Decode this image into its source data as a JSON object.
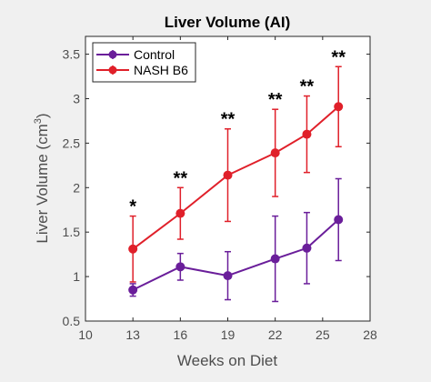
{
  "colors": {
    "figure_background": "#f0f0f0",
    "axes_background": "#ffffff",
    "axis": "#262626",
    "tick_label": "#4d4d4d",
    "control": "#6a1e9a",
    "nash": "#e0202a"
  },
  "chart_data": {
    "type": "line",
    "title": "Liver Volume (AI)",
    "xlabel": "Weeks on Diet",
    "ylabel": "Liver Volume (cm",
    "ylabel_superscript": "3",
    "ylabel_suffix": ")",
    "xlim": [
      10,
      28
    ],
    "ylim": [
      0.5,
      3.7
    ],
    "x_ticks": [
      10,
      13,
      16,
      19,
      22,
      25,
      28
    ],
    "y_ticks": [
      0.5,
      1,
      1.5,
      2,
      2.5,
      3,
      3.5
    ],
    "y_tick_labels": [
      "0.5",
      "1",
      "1.5",
      "2",
      "2.5",
      "3",
      "3.5"
    ],
    "grid": false,
    "legend_position": "top-left",
    "series": [
      {
        "name": "Control",
        "color": "#6a1e9a",
        "x": [
          13,
          16,
          19,
          22,
          24,
          26
        ],
        "y": [
          0.85,
          1.11,
          1.01,
          1.2,
          1.32,
          1.64
        ],
        "err": [
          0.07,
          0.15,
          0.27,
          0.48,
          0.4,
          0.46
        ]
      },
      {
        "name": "NASH B6",
        "color": "#e0202a",
        "x": [
          13,
          16,
          19,
          22,
          24,
          26
        ],
        "y": [
          1.31,
          1.71,
          2.14,
          2.39,
          2.6,
          2.91
        ],
        "err": [
          0.37,
          0.29,
          0.52,
          0.49,
          0.43,
          0.45
        ]
      }
    ],
    "annotations": [
      {
        "x": 13,
        "y": 1.68,
        "text": "*"
      },
      {
        "x": 16,
        "y": 2.0,
        "text": "**"
      },
      {
        "x": 19,
        "y": 2.66,
        "text": "**"
      },
      {
        "x": 22,
        "y": 2.88,
        "text": "**"
      },
      {
        "x": 24,
        "y": 3.03,
        "text": "**"
      },
      {
        "x": 26,
        "y": 3.36,
        "text": "**"
      }
    ]
  }
}
